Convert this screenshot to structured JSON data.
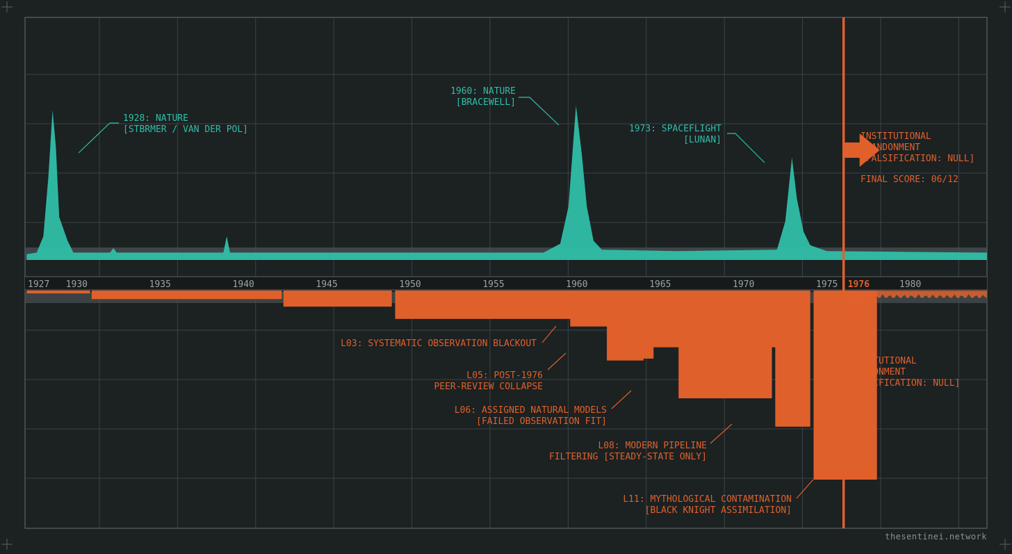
{
  "colors": {
    "background": "#1c2122",
    "grid": "#3b4446",
    "frame": "#5a6466",
    "teal": "#2fbfa9",
    "orange": "#e0602b",
    "grey_band": "#4a5153",
    "tick_text": "#9ca3a5",
    "watermark": "#8a9193"
  },
  "watermark": "thesentinei.network",
  "chart_data": {
    "type": "area",
    "xlim": [
      1926.9,
      1984.6
    ],
    "x_ticks": [
      "1927",
      "1930",
      "1935",
      "1940",
      "1945",
      "1950",
      "1955",
      "1960",
      "1965",
      "1970",
      "1975",
      "1980"
    ],
    "highlight_tick": "1976",
    "highlight_year": 1976,
    "grid": true,
    "publication_signal": [
      {
        "x": 1927.0,
        "y": 0.03
      },
      {
        "x": 1927.6,
        "y": 0.04
      },
      {
        "x": 1928.0,
        "y": 0.15
      },
      {
        "x": 1928.3,
        "y": 0.55
      },
      {
        "x": 1928.55,
        "y": 1.0
      },
      {
        "x": 1928.75,
        "y": 0.75
      },
      {
        "x": 1928.95,
        "y": 0.28
      },
      {
        "x": 1929.2,
        "y": 0.2
      },
      {
        "x": 1929.45,
        "y": 0.12
      },
      {
        "x": 1929.8,
        "y": 0.04
      },
      {
        "x": 1932.0,
        "y": 0.04
      },
      {
        "x": 1932.2,
        "y": 0.07
      },
      {
        "x": 1932.4,
        "y": 0.04
      },
      {
        "x": 1938.8,
        "y": 0.04
      },
      {
        "x": 1939.0,
        "y": 0.15
      },
      {
        "x": 1939.2,
        "y": 0.04
      },
      {
        "x": 1958.0,
        "y": 0.04
      },
      {
        "x": 1959.0,
        "y": 0.1
      },
      {
        "x": 1959.5,
        "y": 0.35
      },
      {
        "x": 1959.95,
        "y": 1.03
      },
      {
        "x": 1960.3,
        "y": 0.7
      },
      {
        "x": 1960.6,
        "y": 0.35
      },
      {
        "x": 1961.0,
        "y": 0.12
      },
      {
        "x": 1961.5,
        "y": 0.06
      },
      {
        "x": 1966.0,
        "y": 0.05
      },
      {
        "x": 1972.0,
        "y": 0.06
      },
      {
        "x": 1972.5,
        "y": 0.25
      },
      {
        "x": 1972.9,
        "y": 0.68
      },
      {
        "x": 1973.2,
        "y": 0.4
      },
      {
        "x": 1973.6,
        "y": 0.18
      },
      {
        "x": 1974.0,
        "y": 0.09
      },
      {
        "x": 1975.0,
        "y": 0.05
      },
      {
        "x": 1984.6,
        "y": 0.04
      }
    ],
    "decline_blocks": [
      {
        "x0": 1927.0,
        "x1": 1930.8,
        "depth": 0.015
      },
      {
        "x0": 1930.9,
        "x1": 1942.3,
        "depth": 0.045
      },
      {
        "x0": 1942.4,
        "x1": 1948.9,
        "depth": 0.085
      },
      {
        "x0": 1949.1,
        "x1": 1960.4,
        "depth": 0.15
      },
      {
        "x0": 1959.6,
        "x1": 1963.6,
        "depth": 0.19
      },
      {
        "x0": 1963.8,
        "x1": 1972.9,
        "depth": 0.3
      },
      {
        "x0": 1961.8,
        "x1": 1964.0,
        "depth": 0.37
      },
      {
        "x0": 1963.9,
        "x1": 1964.6,
        "depth": 0.36
      },
      {
        "x0": 1966.1,
        "x1": 1971.7,
        "depth": 0.57
      },
      {
        "x0": 1971.9,
        "x1": 1974.0,
        "depth": 0.72
      },
      {
        "x0": 1974.2,
        "x1": 1978.0,
        "depth": 1.0
      }
    ],
    "post_signal_start": 1976.3,
    "annotations": {
      "top": [
        {
          "lines": [
            "1928: NATURE",
            "[STBRMER / VAN DER POL]"
          ]
        },
        {
          "lines": [
            "1960: NATURE",
            "[BRACEWELL]"
          ]
        },
        {
          "lines": [
            "1973: SPACEFLIGHT",
            "[LUNAN]"
          ]
        }
      ],
      "arrow_label": [
        "INSTITUTIONAL",
        "ABANDONMENT",
        "[FALSIFICATION: NULL]"
      ],
      "final_score": "FINAL SCORE: 06/12",
      "bottom": [
        {
          "lines": [
            "L03: SYSTEMATIC OBSERVATION BLACKOUT"
          ]
        },
        {
          "lines": [
            "L05: POST-1976",
            "PEER-REVIEW COLLAPSE"
          ]
        },
        {
          "lines": [
            "L06: ASSIGNED NATURAL MODELS",
            "[FAILED OBSERVATION FIT]"
          ]
        },
        {
          "lines": [
            "L08: MODERN PIPELINE",
            "FILTERING [STEADY-STATE ONLY]"
          ]
        },
        {
          "lines": [
            "L11: MYTHOLOGICAL CONTAMINATION",
            "[BLACK KNIGHT ASSIMILATION]"
          ]
        },
        {
          "lines": [
            "INSTITUTIONAL",
            "ABANDONMENT",
            "[FALSIFICATION: NULL]"
          ]
        }
      ]
    }
  }
}
